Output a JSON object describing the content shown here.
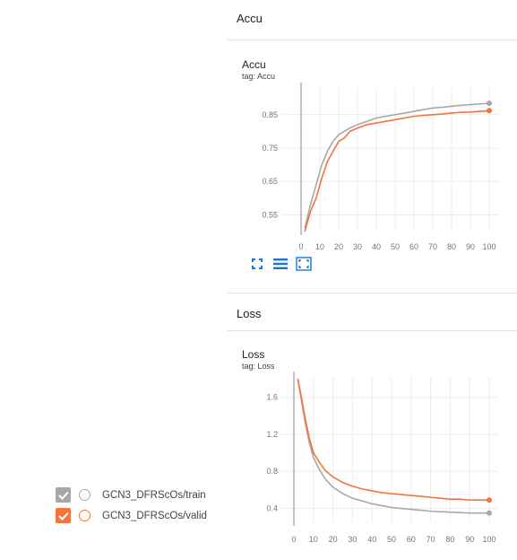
{
  "sections": {
    "accu": {
      "title": "Accu",
      "card_title": "Accu",
      "tag": "tag: Accu"
    },
    "loss": {
      "title": "Loss",
      "card_title": "Loss",
      "tag": "tag: Loss"
    }
  },
  "toolbar": {
    "icons": [
      "fit-to-data-icon",
      "toggle-log-scale-icon",
      "expand-chart-icon"
    ],
    "accent": "#1976d2"
  },
  "runs": [
    {
      "label": "GCN3_DFRScOs/train",
      "color": "#a8a8a8",
      "checked": true
    },
    {
      "label": "GCN3_DFRScOs/valid",
      "color": "#f4743b",
      "checked": true
    }
  ],
  "chart_data": [
    {
      "type": "line",
      "title": "Accu",
      "xlim": [
        0,
        100
      ],
      "ylim": [
        0.5,
        0.93
      ],
      "x_ticks": [
        0,
        10,
        20,
        30,
        40,
        50,
        60,
        70,
        80,
        90,
        100
      ],
      "y_ticks": [
        0.55,
        0.65,
        0.75,
        0.85
      ],
      "y_tick_labels": [
        "0.55",
        "0.65",
        "0.75",
        "0.85"
      ],
      "x": [
        2,
        5,
        8,
        11,
        14,
        17,
        20,
        23,
        26,
        30,
        35,
        40,
        45,
        50,
        55,
        60,
        65,
        70,
        75,
        80,
        85,
        90,
        95,
        100
      ],
      "series": [
        {
          "name": "GCN3_DFRScOs/train",
          "color": "#a8a8a8",
          "values": [
            0.51,
            0.58,
            0.64,
            0.7,
            0.74,
            0.77,
            0.79,
            0.8,
            0.81,
            0.82,
            0.83,
            0.84,
            0.845,
            0.85,
            0.855,
            0.86,
            0.865,
            0.87,
            0.872,
            0.875,
            0.878,
            0.88,
            0.882,
            0.884
          ]
        },
        {
          "name": "GCN3_DFRScOs/valid",
          "color": "#f4743b",
          "values": [
            0.5,
            0.56,
            0.6,
            0.66,
            0.71,
            0.74,
            0.77,
            0.78,
            0.8,
            0.81,
            0.82,
            0.825,
            0.83,
            0.835,
            0.84,
            0.845,
            0.848,
            0.85,
            0.852,
            0.855,
            0.857,
            0.858,
            0.86,
            0.862
          ]
        }
      ]
    },
    {
      "type": "line",
      "title": "Loss",
      "xlim": [
        0,
        100
      ],
      "ylim": [
        0.25,
        1.82
      ],
      "x_ticks": [
        0,
        10,
        20,
        30,
        40,
        50,
        60,
        70,
        80,
        90,
        100
      ],
      "y_ticks": [
        0.4,
        0.8,
        1.2,
        1.6
      ],
      "y_tick_labels": [
        "0.4",
        "0.8",
        "1.2",
        "1.6"
      ],
      "x": [
        2,
        4,
        6,
        8,
        10,
        13,
        16,
        20,
        25,
        30,
        35,
        40,
        45,
        50,
        55,
        60,
        65,
        70,
        75,
        80,
        85,
        90,
        95,
        100
      ],
      "series": [
        {
          "name": "GCN3_DFRScOs/train",
          "color": "#a8a8a8",
          "values": [
            1.8,
            1.55,
            1.3,
            1.1,
            0.95,
            0.82,
            0.72,
            0.63,
            0.56,
            0.51,
            0.48,
            0.45,
            0.43,
            0.41,
            0.4,
            0.39,
            0.38,
            0.37,
            0.365,
            0.36,
            0.355,
            0.35,
            0.35,
            0.35
          ]
        },
        {
          "name": "GCN3_DFRScOs/valid",
          "color": "#f4743b",
          "values": [
            1.8,
            1.58,
            1.35,
            1.15,
            1.0,
            0.9,
            0.81,
            0.74,
            0.68,
            0.64,
            0.61,
            0.59,
            0.57,
            0.56,
            0.55,
            0.54,
            0.53,
            0.52,
            0.51,
            0.5,
            0.5,
            0.49,
            0.49,
            0.49
          ]
        }
      ]
    }
  ]
}
